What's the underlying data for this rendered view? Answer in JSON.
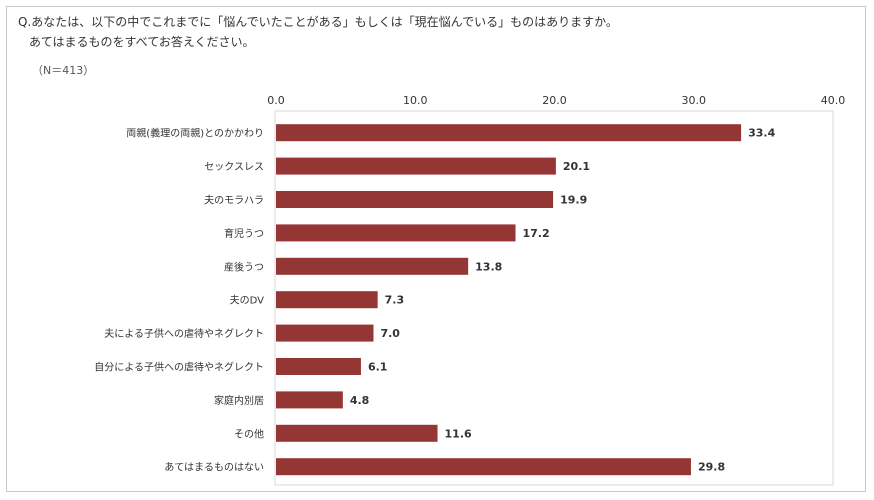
{
  "question": {
    "line1": "Q.あなたは、以下の中でこれまでに「悩んでいたことがある」もしくは「現在悩んでいる」ものはありますか。",
    "line2": "あてはまるものをすべてお答えください。"
  },
  "sample_note": "（N＝413）",
  "chart_data": {
    "type": "bar",
    "orientation": "horizontal",
    "title": "",
    "xlabel": "",
    "ylabel": "",
    "xlim": [
      0,
      40
    ],
    "ticks": [
      0,
      10,
      20,
      30,
      40
    ],
    "tick_labels": [
      "0.0",
      "10.0",
      "20.0",
      "30.0",
      "40.0"
    ],
    "categories": [
      "両親(義理の両親)とのかかわり",
      "セックスレス",
      "夫のモラハラ",
      "育児うつ",
      "産後うつ",
      "夫のDV",
      "夫による子供への虐待やネグレクト",
      "自分による子供への虐待やネグレクト",
      "家庭内別居",
      "その他",
      "あてはまるものはない"
    ],
    "values": [
      33.4,
      20.1,
      19.9,
      17.2,
      13.8,
      7.3,
      7.0,
      6.1,
      4.8,
      11.6,
      29.8
    ],
    "value_labels": [
      "33.4",
      "20.1",
      "19.9",
      "17.2",
      "13.8",
      "7.3",
      "7.0",
      "6.1",
      "4.8",
      "11.6",
      "29.8"
    ],
    "bar_color": "#943634",
    "grid": false
  }
}
